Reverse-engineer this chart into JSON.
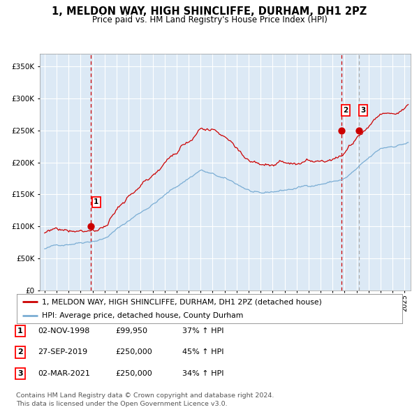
{
  "title": "1, MELDON WAY, HIGH SHINCLIFFE, DURHAM, DH1 2PZ",
  "subtitle": "Price paid vs. HM Land Registry's House Price Index (HPI)",
  "ylim": [
    0,
    370000
  ],
  "yticks": [
    0,
    50000,
    100000,
    150000,
    200000,
    250000,
    300000,
    350000
  ],
  "ytick_labels": [
    "£0",
    "£50K",
    "£100K",
    "£150K",
    "£200K",
    "£250K",
    "£300K",
    "£350K"
  ],
  "plot_bg_color": "#dce9f5",
  "red_line_color": "#cc0000",
  "blue_line_color": "#7aadd4",
  "marker_color": "#cc0000",
  "vline_color_red": "#cc0000",
  "vline_color_gray": "#aaaaaa",
  "grid_color": "#ffffff",
  "sale_points": [
    {
      "year": 1998.84,
      "price": 99950,
      "label": "1"
    },
    {
      "year": 2019.74,
      "price": 250000,
      "label": "2"
    },
    {
      "year": 2021.17,
      "price": 250000,
      "label": "3"
    }
  ],
  "legend_entries": [
    {
      "label": "1, MELDON WAY, HIGH SHINCLIFFE, DURHAM, DH1 2PZ (detached house)",
      "color": "#cc0000"
    },
    {
      "label": "HPI: Average price, detached house, County Durham",
      "color": "#7aadd4"
    }
  ],
  "table_rows": [
    {
      "num": "1",
      "date": "02-NOV-1998",
      "price": "£99,950",
      "change": "37% ↑ HPI"
    },
    {
      "num": "2",
      "date": "27-SEP-2019",
      "price": "£250,000",
      "change": "45% ↑ HPI"
    },
    {
      "num": "3",
      "date": "02-MAR-2021",
      "price": "£250,000",
      "change": "34% ↑ HPI"
    }
  ],
  "footer": [
    "Contains HM Land Registry data © Crown copyright and database right 2024.",
    "This data is licensed under the Open Government Licence v3.0."
  ]
}
